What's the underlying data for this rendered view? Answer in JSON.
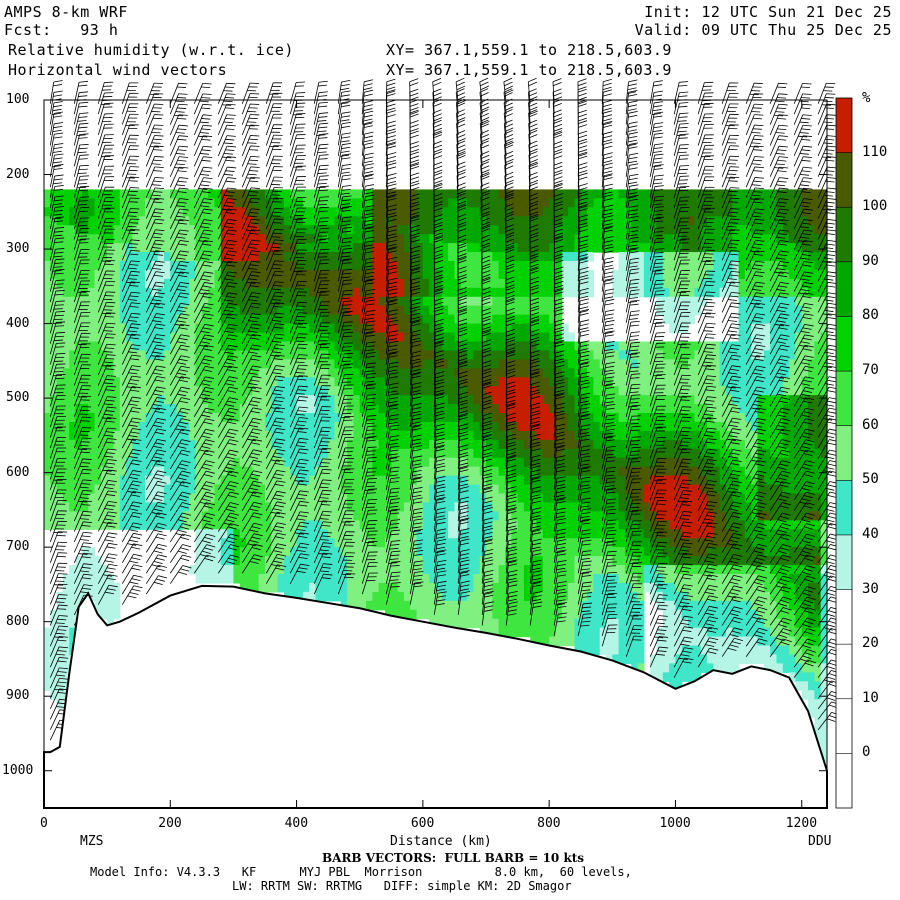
{
  "header": {
    "model": "AMPS 8-km WRF",
    "fcst": "Fcst:   93 h",
    "field": "Relative humidity (w.r.t. ice)",
    "vectors": "Horizontal wind vectors",
    "xy1": "XY= 367.1,559.1 to 218.5,603.9",
    "xy2": "XY= 367.1,559.1 to 218.5,603.9",
    "init": "Init: 12 UTC Sun 21 Dec 25",
    "valid": "Valid: 09 UTC Thu 25 Dec 25"
  },
  "footer": {
    "barb": "BARB VECTORS:  FULL BARB = 10 kts",
    "model_info": "Model Info: V4.3.3   KF      MYJ PBL  Morrison          8.0 km,  60 levels,",
    "physics": "LW: RRTM SW: RRTMG   DIFF: simple KM: 2D Smagor"
  },
  "chart_data": {
    "type": "heatmap",
    "xlabel": "Distance (km)",
    "x_endpoints": [
      "MZS",
      "DDU"
    ],
    "xlim": [
      0,
      1240
    ],
    "ylim": [
      1050,
      100
    ],
    "x_ticks": [
      "0",
      "200",
      "400",
      "600",
      "800",
      "1000",
      "1200"
    ],
    "y_ticks": [
      "100",
      "200",
      "300",
      "400",
      "500",
      "600",
      "700",
      "800",
      "900",
      "1000"
    ],
    "colorbar": {
      "unit": "%",
      "levels": [
        "110",
        "100",
        "90",
        "80",
        "70",
        "60",
        "50",
        "40",
        "30",
        "20",
        "10",
        "0"
      ],
      "colors": [
        "#c81e00",
        "#4a5a00",
        "#1e7a00",
        "#00a800",
        "#00d200",
        "#40e640",
        "#80f080",
        "#40e6c8",
        "#b4f5e6",
        "#ffffff",
        "#ffffff",
        "#ffffff",
        "#ffffff"
      ]
    },
    "terrain_hpa": {
      "x": [
        0,
        10,
        25,
        40,
        55,
        70,
        85,
        100,
        120,
        150,
        200,
        250,
        300,
        350,
        400,
        450,
        500,
        550,
        600,
        650,
        700,
        750,
        800,
        850,
        900,
        950,
        1000,
        1030,
        1060,
        1090,
        1120,
        1150,
        1180,
        1210,
        1240
      ],
      "p": [
        975,
        975,
        968,
        870,
        780,
        762,
        790,
        805,
        800,
        788,
        765,
        752,
        753,
        762,
        768,
        775,
        782,
        792,
        800,
        808,
        815,
        823,
        832,
        840,
        852,
        868,
        890,
        880,
        865,
        870,
        860,
        865,
        875,
        920,
        1000
      ]
    }
  }
}
